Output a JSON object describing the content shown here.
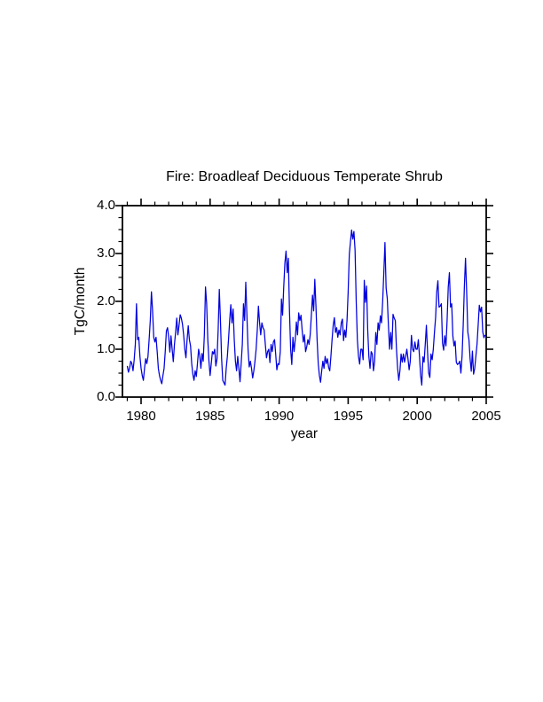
{
  "page": {
    "background": "#ffffff"
  },
  "chart_data": {
    "type": "line",
    "title": "Fire: Broadleaf Deciduous Temperate Shrub",
    "xlabel": "year",
    "ylabel": "TgC/month",
    "xlim": [
      1978.65,
      2005.0
    ],
    "ylim": [
      0.0,
      4.0
    ],
    "grid": false,
    "legend": "none",
    "line_color": "#0000dd",
    "frame_color": "#000000",
    "x_tick_labels": [
      "1980",
      "1985",
      "1990",
      "1995",
      "2000",
      "2005"
    ],
    "x_tick_values": [
      1980,
      1985,
      1990,
      1995,
      2000,
      2005
    ],
    "x_minor_tick_step_years": 1,
    "y_tick_labels": [
      "0.0",
      "1.0",
      "2.0",
      "3.0",
      "4.0"
    ],
    "y_tick_values": [
      0,
      1,
      2,
      3,
      4
    ],
    "y_minor_tick_step": 0.25,
    "series": [
      {
        "name": "fire-emissions-broadleaf-deciduous-temperate-shrub",
        "x_start_year": 1979.0,
        "x_step_years": 0.0833333,
        "units": "TgC/month",
        "values": [
          0.65,
          0.52,
          0.6,
          0.75,
          0.7,
          0.55,
          0.78,
          1.1,
          1.95,
          1.2,
          1.25,
          0.85,
          0.6,
          0.45,
          0.35,
          0.6,
          0.8,
          0.7,
          0.85,
          1.2,
          1.6,
          2.2,
          1.8,
          1.25,
          1.15,
          1.25,
          0.95,
          0.6,
          0.45,
          0.35,
          0.28,
          0.45,
          0.6,
          0.95,
          1.38,
          1.45,
          1.25,
          0.94,
          1.28,
          1.0,
          0.74,
          1.1,
          1.35,
          1.65,
          1.3,
          1.5,
          1.72,
          1.65,
          1.52,
          1.3,
          1.0,
          0.82,
          1.2,
          1.49,
          1.2,
          1.07,
          0.7,
          0.48,
          0.35,
          0.55,
          0.43,
          0.7,
          1.0,
          0.87,
          0.6,
          0.91,
          0.75,
          1.3,
          2.3,
          1.95,
          1.2,
          0.75,
          0.45,
          0.7,
          0.95,
          0.9,
          1.0,
          0.65,
          0.8,
          1.4,
          2.25,
          1.6,
          0.8,
          0.35,
          0.3,
          0.25,
          0.6,
          0.85,
          1.2,
          1.6,
          1.93,
          1.55,
          1.84,
          1.2,
          0.75,
          0.55,
          0.85,
          0.6,
          0.32,
          0.7,
          1.1,
          1.95,
          1.6,
          2.4,
          1.7,
          1.0,
          0.63,
          0.75,
          0.6,
          0.4,
          0.55,
          0.75,
          1.0,
          1.4,
          1.9,
          1.55,
          1.3,
          1.55,
          1.45,
          1.4,
          1.1,
          0.82,
          0.95,
          1.0,
          0.72,
          1.1,
          0.95,
          1.15,
          1.2,
          0.9,
          0.57,
          0.7,
          0.68,
          0.95,
          2.05,
          1.71,
          2.3,
          2.8,
          3.05,
          2.6,
          2.9,
          1.8,
          1.0,
          0.68,
          1.25,
          0.95,
          1.2,
          1.57,
          1.3,
          1.76,
          1.6,
          1.71,
          1.4,
          1.15,
          1.3,
          0.95,
          1.05,
          1.2,
          1.1,
          1.3,
          1.7,
          2.13,
          1.8,
          2.46,
          1.9,
          1.2,
          0.7,
          0.45,
          0.31,
          0.55,
          0.75,
          0.6,
          0.85,
          0.7,
          0.8,
          0.62,
          0.55,
          0.85,
          1.2,
          1.5,
          1.66,
          1.35,
          1.45,
          1.25,
          1.4,
          1.3,
          1.55,
          1.63,
          1.18,
          1.4,
          1.25,
          1.6,
          2.2,
          2.98,
          3.25,
          3.49,
          3.3,
          3.46,
          3.07,
          2.0,
          1.2,
          0.85,
          0.69,
          1.0,
          1.0,
          0.78,
          2.44,
          1.98,
          2.32,
          1.4,
          0.85,
          0.6,
          0.95,
          0.9,
          0.55,
          0.75,
          1.35,
          1.1,
          1.55,
          1.4,
          1.7,
          1.55,
          2.0,
          2.6,
          3.23,
          2.28,
          2.06,
          1.5,
          1.0,
          1.35,
          1.0,
          1.73,
          1.65,
          1.6,
          1.0,
          0.6,
          0.35,
          0.55,
          0.9,
          0.73,
          0.9,
          0.73,
          0.85,
          1.0,
          0.8,
          0.57,
          0.75,
          1.29,
          1.0,
          0.95,
          1.15,
          1.0,
          1.0,
          1.2,
          0.85,
          0.45,
          0.25,
          0.84,
          0.73,
          1.1,
          1.5,
          0.95,
          0.5,
          0.41,
          0.9,
          0.78,
          1.0,
          1.35,
          1.66,
          2.2,
          2.43,
          1.88,
          1.9,
          1.95,
          1.13,
          0.98,
          1.28,
          1.07,
          1.6,
          2.3,
          2.6,
          1.88,
          1.95,
          1.28,
          1.07,
          1.17,
          0.73,
          0.68,
          0.7,
          0.75,
          0.5,
          0.85,
          1.5,
          2.3,
          2.9,
          2.2,
          1.36,
          1.2,
          0.8,
          0.54,
          0.96,
          0.48,
          0.6,
          0.85,
          1.1,
          1.5,
          1.92,
          1.78,
          1.88,
          1.36,
          1.24,
          1.3
        ]
      }
    ]
  }
}
